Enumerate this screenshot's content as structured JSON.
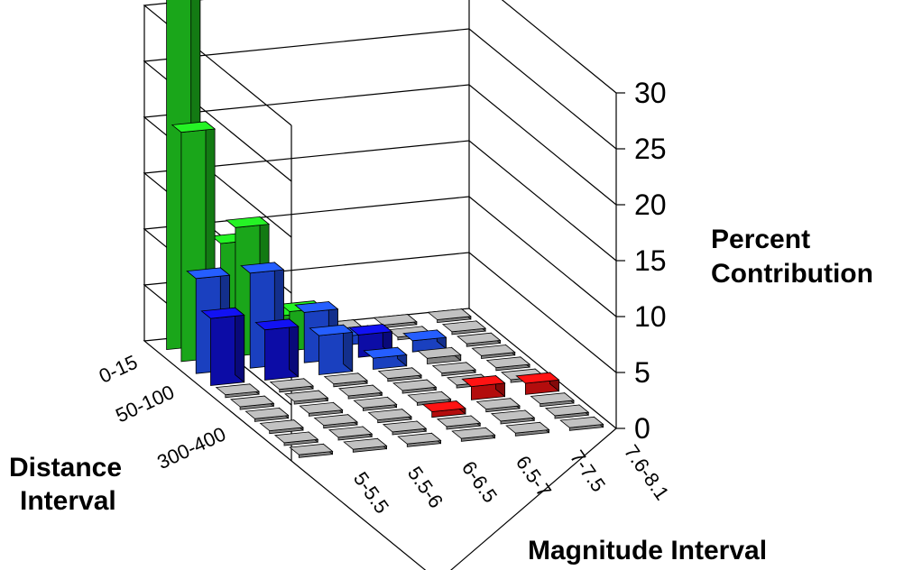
{
  "chart_data": {
    "type": "bar3d",
    "zlabel_lines": [
      "Percent",
      "Contribution"
    ],
    "ylabel_lines": [
      "Distance",
      "Interval"
    ],
    "xlabel": "Magnitude Interval",
    "zlim": [
      0,
      30
    ],
    "zticks": [
      "0",
      "5",
      "10",
      "15",
      "20",
      "25",
      "30"
    ],
    "magnitude_categories": [
      "5-5.5",
      "5.5-6",
      "6-6.5",
      "6.5-7",
      "7-7.5",
      "7.6-8.1"
    ],
    "distance_tick_labels": [
      "0-15",
      "50-100",
      "300-400"
    ],
    "grid": true,
    "colors": {
      "green": "#22dd22",
      "blue": "#2255ff",
      "darkblue": "#1010dd",
      "gray": "#b0b0b0",
      "red": "#ee1111"
    },
    "series": [
      {
        "values": [
          34.5,
          9.0,
          2.0,
          0,
          0,
          0
        ],
        "colors": [
          "green",
          "green",
          "green",
          "gray",
          "gray",
          "gray"
        ]
      },
      {
        "values": [
          20.5,
          11.5,
          3.5,
          0.8,
          0,
          0
        ],
        "colors": [
          "green",
          "green",
          "green",
          "blue",
          "gray",
          "gray"
        ]
      },
      {
        "values": [
          8.5,
          8.5,
          4.5,
          2.0,
          1.0,
          0
        ],
        "colors": [
          "blue",
          "blue",
          "blue",
          "darkblue",
          "blue",
          "gray"
        ]
      },
      {
        "values": [
          6.0,
          4.5,
          3.5,
          1.0,
          0.5,
          0
        ],
        "colors": [
          "darkblue",
          "darkblue",
          "blue",
          "blue",
          "gray",
          "gray"
        ]
      },
      {
        "values": [
          0,
          0,
          0,
          0,
          0,
          0
        ],
        "colors": [
          "gray",
          "gray",
          "gray",
          "gray",
          "gray",
          "gray"
        ]
      },
      {
        "values": [
          0,
          0,
          0,
          0,
          0,
          0
        ],
        "colors": [
          "gray",
          "gray",
          "gray",
          "gray",
          "gray",
          "gray"
        ]
      },
      {
        "values": [
          0,
          0,
          0,
          0,
          1.2,
          1.0
        ],
        "colors": [
          "gray",
          "gray",
          "gray",
          "gray",
          "red",
          "red"
        ]
      },
      {
        "values": [
          0,
          0,
          0,
          0.5,
          0,
          0
        ],
        "colors": [
          "gray",
          "gray",
          "gray",
          "red",
          "gray",
          "gray"
        ]
      },
      {
        "values": [
          0,
          0,
          0,
          0,
          0,
          0
        ],
        "colors": [
          "gray",
          "gray",
          "gray",
          "gray",
          "gray",
          "gray"
        ]
      },
      {
        "values": [
          0,
          0,
          0,
          0,
          0,
          0
        ],
        "colors": [
          "gray",
          "gray",
          "gray",
          "gray",
          "gray",
          "gray"
        ]
      }
    ]
  }
}
